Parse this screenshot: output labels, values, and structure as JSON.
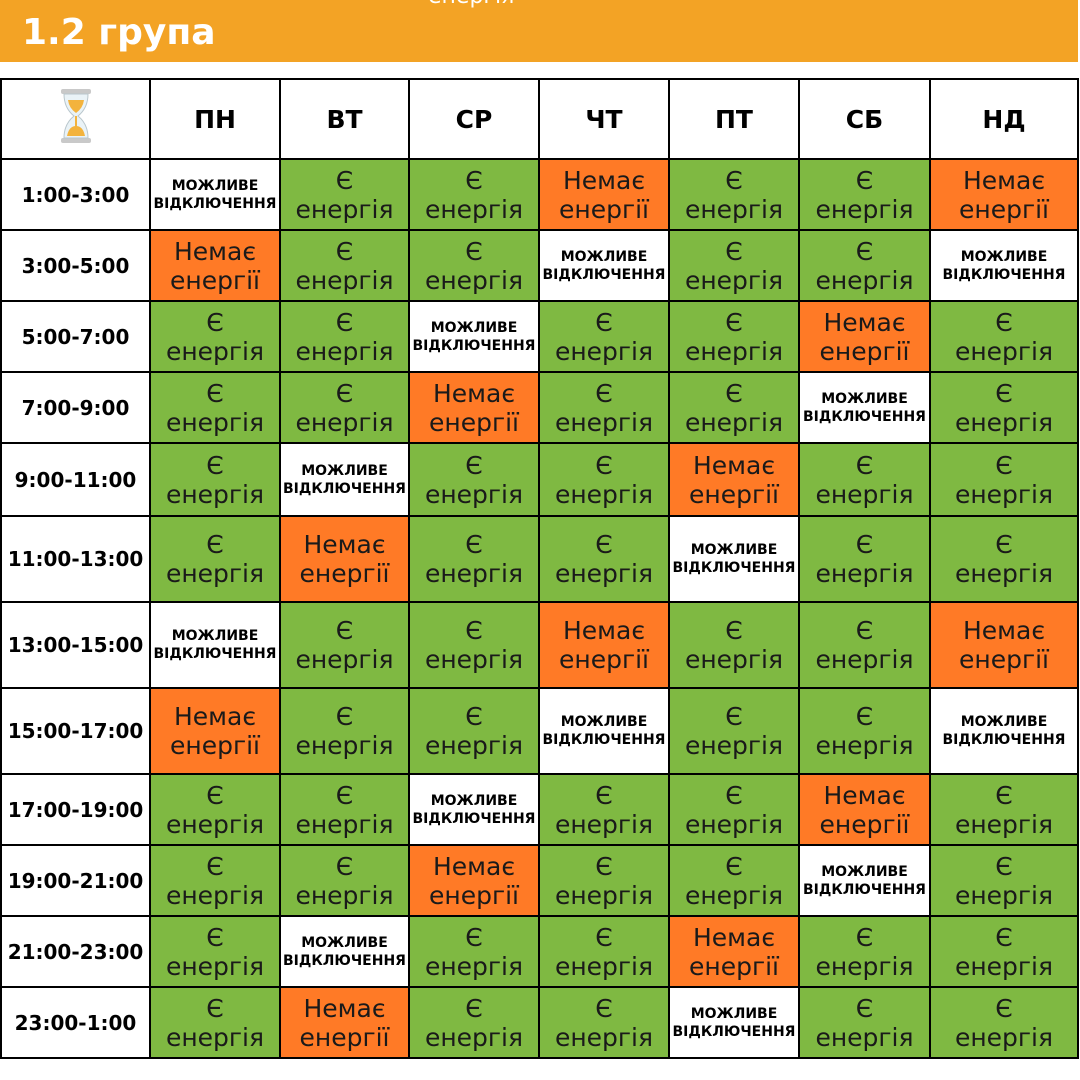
{
  "header": {
    "title": "1.2 група",
    "cut_text": "енергія",
    "color": "#f3a325"
  },
  "legend_colors": {
    "on": "#7fb942",
    "off": "#ff7a26",
    "maybe": "#ffffff"
  },
  "corner_icon": "hourglass-icon",
  "days": [
    "ПН",
    "ВТ",
    "СР",
    "ЧТ",
    "ПТ",
    "СБ",
    "НД"
  ],
  "labels": {
    "on": "Є\nенергія",
    "off": "Немає\nенергії",
    "maybe": "МОЖЛИВЕ\nВІДКЛЮЧЕННЯ"
  },
  "rows": [
    {
      "time": "1:00-3:00",
      "cells": [
        "maybe",
        "on",
        "on",
        "off",
        "on",
        "on",
        "off"
      ]
    },
    {
      "time": "3:00-5:00",
      "cells": [
        "off",
        "on",
        "on",
        "maybe",
        "on",
        "on",
        "maybe"
      ]
    },
    {
      "time": "5:00-7:00",
      "cells": [
        "on",
        "on",
        "maybe",
        "on",
        "on",
        "off",
        "on"
      ]
    },
    {
      "time": "7:00-9:00",
      "cells": [
        "on",
        "on",
        "off",
        "on",
        "on",
        "maybe",
        "on"
      ]
    },
    {
      "time": "9:00-11:00",
      "cells": [
        "on",
        "maybe",
        "on",
        "on",
        "off",
        "on",
        "on"
      ]
    },
    {
      "time": "11:00-13:00",
      "cells": [
        "on",
        "off",
        "on",
        "on",
        "maybe",
        "on",
        "on"
      ]
    },
    {
      "time": "13:00-15:00",
      "cells": [
        "maybe",
        "on",
        "on",
        "off",
        "on",
        "on",
        "off"
      ]
    },
    {
      "time": "15:00-17:00",
      "cells": [
        "off",
        "on",
        "on",
        "maybe",
        "on",
        "on",
        "maybe"
      ]
    },
    {
      "time": "17:00-19:00",
      "cells": [
        "on",
        "on",
        "maybe",
        "on",
        "on",
        "off",
        "on"
      ]
    },
    {
      "time": "19:00-21:00",
      "cells": [
        "on",
        "on",
        "off",
        "on",
        "on",
        "maybe",
        "on"
      ]
    },
    {
      "time": "21:00-23:00",
      "cells": [
        "on",
        "maybe",
        "on",
        "on",
        "off",
        "on",
        "on"
      ]
    },
    {
      "time": "23:00-1:00",
      "cells": [
        "on",
        "off",
        "on",
        "on",
        "maybe",
        "on",
        "on"
      ]
    }
  ]
}
